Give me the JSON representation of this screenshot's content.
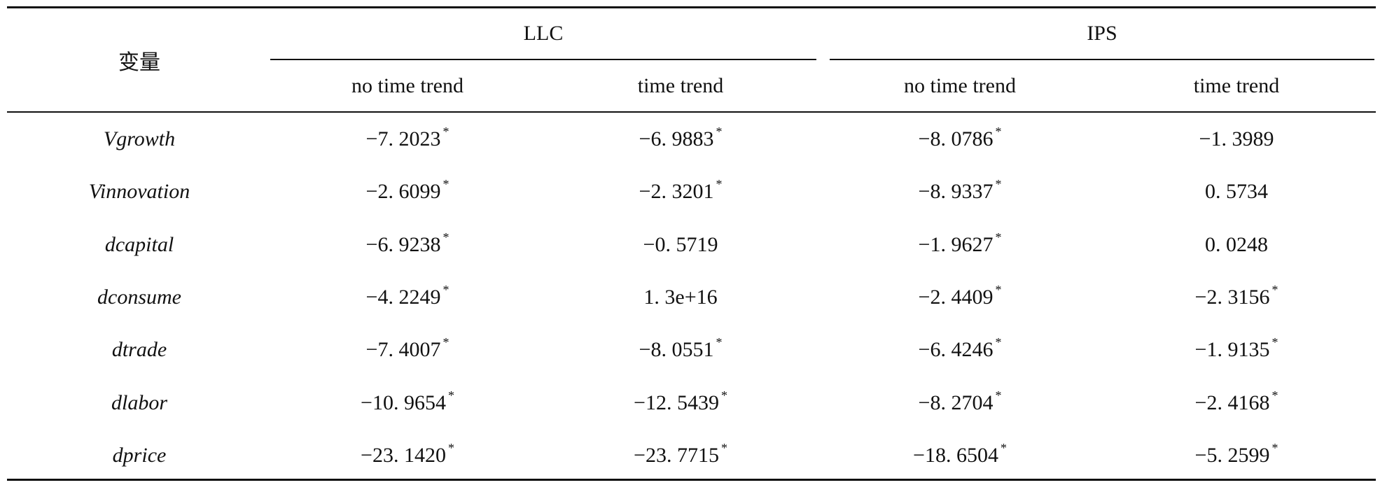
{
  "table": {
    "header": {
      "variable": "变量",
      "groups": [
        "LLC",
        "IPS"
      ],
      "columns": [
        "no time trend",
        "time trend",
        "no time trend",
        "time trend"
      ]
    },
    "rows": [
      {
        "name": "Vgrowth",
        "cells": [
          {
            "value": "−7. 2023",
            "mark": "*"
          },
          {
            "value": "−6. 9883",
            "mark": "*"
          },
          {
            "value": "−8. 0786",
            "mark": "*"
          },
          {
            "value": "−1. 3989"
          }
        ]
      },
      {
        "name": "Vinnovation",
        "cells": [
          {
            "value": "−2. 6099",
            "mark": "*"
          },
          {
            "value": "−2. 3201",
            "mark": "*"
          },
          {
            "value": "−8. 9337",
            "mark": "*"
          },
          {
            "value": "0. 5734"
          }
        ]
      },
      {
        "name": "dcapital",
        "cells": [
          {
            "value": "−6. 9238",
            "mark": "*"
          },
          {
            "value": "−0. 5719"
          },
          {
            "value": "−1. 9627",
            "mark": "*"
          },
          {
            "value": "0. 0248"
          }
        ]
      },
      {
        "name": "dconsume",
        "cells": [
          {
            "value": "−4. 2249",
            "mark": "*"
          },
          {
            "value": "1. 3e+16"
          },
          {
            "value": "−2. 4409",
            "mark": "*"
          },
          {
            "value": "−2. 3156",
            "mark": "*"
          }
        ]
      },
      {
        "name": "dtrade",
        "cells": [
          {
            "value": "−7. 4007",
            "mark": "*"
          },
          {
            "value": "−8. 0551",
            "mark": "*"
          },
          {
            "value": "−6. 4246",
            "mark": "*"
          },
          {
            "value": "−1. 9135",
            "mark": "*"
          }
        ]
      },
      {
        "name": "dlabor",
        "cells": [
          {
            "value": "−10. 9654",
            "mark": "*"
          },
          {
            "value": "−12. 5439",
            "mark": "*"
          },
          {
            "value": "−8. 2704",
            "mark": "*"
          },
          {
            "value": "−2. 4168",
            "mark": "*"
          }
        ]
      },
      {
        "name": "dprice",
        "cells": [
          {
            "value": "−23. 1420",
            "mark": "*"
          },
          {
            "value": "−23. 7715",
            "mark": "*"
          },
          {
            "value": "−18. 6504",
            "mark": "*"
          },
          {
            "value": "−5. 2599",
            "mark": "*"
          }
        ]
      }
    ]
  }
}
